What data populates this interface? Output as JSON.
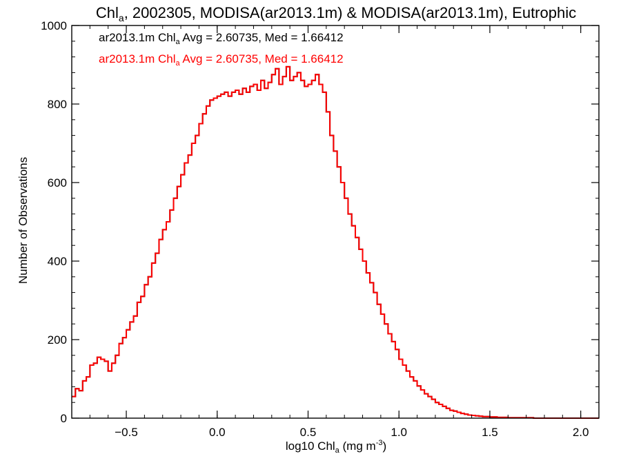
{
  "title": {
    "prefix": "Chl",
    "prefix_sub": "a",
    "rest": ", 2002305, MODISA(ar2013.1m) & MODISA(ar2013.1m), Eutrophic"
  },
  "legend": [
    {
      "prefix": "ar2013.1m Chl",
      "sub": "a",
      "rest": " Avg = 2.60735, Med = 1.66412",
      "color": "#000000"
    },
    {
      "prefix": "ar2013.1m Chl",
      "sub": "a",
      "rest": " Avg = 2.60735, Med = 1.66412",
      "color": "#ff0000"
    }
  ],
  "axes": {
    "xlabel": {
      "prefix": "log10 Chl",
      "sub": "a",
      "rest": " (mg m",
      "sup": "-3",
      "end": ")"
    },
    "ylabel": "Number of Observations",
    "xticks": [
      {
        "v": -0.5,
        "label": "−0.5"
      },
      {
        "v": 0.0,
        "label": "0.0"
      },
      {
        "v": 0.5,
        "label": "0.5"
      },
      {
        "v": 1.0,
        "label": "1.0"
      },
      {
        "v": 1.5,
        "label": "1.5"
      },
      {
        "v": 2.0,
        "label": "2.0"
      }
    ],
    "yticks": [
      {
        "v": 0,
        "label": "0"
      },
      {
        "v": 200,
        "label": "200"
      },
      {
        "v": 400,
        "label": "400"
      },
      {
        "v": 600,
        "label": "600"
      },
      {
        "v": 800,
        "label": "800"
      },
      {
        "v": 1000,
        "label": "1000"
      }
    ]
  },
  "chart_data": {
    "type": "line",
    "style": "step",
    "xlim": [
      -0.8,
      2.1
    ],
    "ylim": [
      0,
      1000
    ],
    "bin_width": 0.02,
    "series": [
      {
        "name": "ar2013.1m",
        "color": "#000000"
      },
      {
        "name": "ar2013.1m",
        "color": "#ff0000"
      }
    ],
    "x": [
      -0.8,
      -0.78,
      -0.76,
      -0.74,
      -0.72,
      -0.7,
      -0.68,
      -0.66,
      -0.64,
      -0.62,
      -0.6,
      -0.58,
      -0.56,
      -0.54,
      -0.52,
      -0.5,
      -0.48,
      -0.46,
      -0.44,
      -0.42,
      -0.4,
      -0.38,
      -0.36,
      -0.34,
      -0.32,
      -0.3,
      -0.28,
      -0.26,
      -0.24,
      -0.22,
      -0.2,
      -0.18,
      -0.16,
      -0.14,
      -0.12,
      -0.1,
      -0.08,
      -0.06,
      -0.04,
      -0.02,
      0.0,
      0.02,
      0.04,
      0.06,
      0.08,
      0.1,
      0.12,
      0.14,
      0.16,
      0.18,
      0.2,
      0.22,
      0.24,
      0.26,
      0.28,
      0.3,
      0.32,
      0.34,
      0.36,
      0.38,
      0.4,
      0.42,
      0.44,
      0.46,
      0.48,
      0.5,
      0.52,
      0.54,
      0.56,
      0.58,
      0.6,
      0.62,
      0.64,
      0.66,
      0.68,
      0.7,
      0.72,
      0.74,
      0.76,
      0.78,
      0.8,
      0.82,
      0.84,
      0.86,
      0.88,
      0.9,
      0.92,
      0.94,
      0.96,
      0.98,
      1.0,
      1.02,
      1.04,
      1.06,
      1.08,
      1.1,
      1.12,
      1.14,
      1.16,
      1.18,
      1.2,
      1.22,
      1.24,
      1.26,
      1.28,
      1.3,
      1.32,
      1.34,
      1.36,
      1.38,
      1.4,
      1.42,
      1.44,
      1.46,
      1.48,
      1.5,
      1.52,
      1.54,
      1.56,
      1.58,
      1.6,
      1.62,
      1.64,
      1.66,
      1.68,
      1.7,
      1.72,
      1.74,
      1.76,
      1.78,
      1.8,
      1.82,
      1.84,
      1.86,
      1.88,
      1.9,
      1.92,
      1.94,
      1.96,
      1.98,
      2.0,
      2.02,
      2.04,
      2.06,
      2.08
    ],
    "values": [
      55,
      75,
      70,
      95,
      105,
      135,
      140,
      155,
      150,
      145,
      120,
      140,
      160,
      190,
      205,
      225,
      245,
      260,
      295,
      310,
      340,
      360,
      395,
      420,
      455,
      480,
      500,
      530,
      560,
      590,
      620,
      650,
      670,
      700,
      720,
      750,
      775,
      795,
      810,
      815,
      820,
      825,
      830,
      820,
      830,
      835,
      825,
      840,
      830,
      845,
      850,
      835,
      860,
      840,
      855,
      875,
      890,
      850,
      870,
      895,
      860,
      870,
      880,
      860,
      845,
      850,
      860,
      875,
      850,
      830,
      780,
      720,
      680,
      640,
      600,
      560,
      520,
      490,
      460,
      430,
      400,
      370,
      345,
      320,
      290,
      265,
      240,
      215,
      195,
      175,
      150,
      135,
      120,
      105,
      95,
      82,
      72,
      62,
      55,
      48,
      40,
      35,
      30,
      25,
      20,
      18,
      15,
      12,
      10,
      8,
      7,
      6,
      5,
      4,
      4,
      3,
      3,
      2,
      2,
      2,
      1,
      1,
      1,
      1,
      1,
      1,
      1,
      0,
      0,
      0,
      0,
      0,
      0,
      0,
      0,
      0,
      0,
      0,
      0,
      0,
      0,
      0,
      0,
      0,
      0
    ]
  }
}
